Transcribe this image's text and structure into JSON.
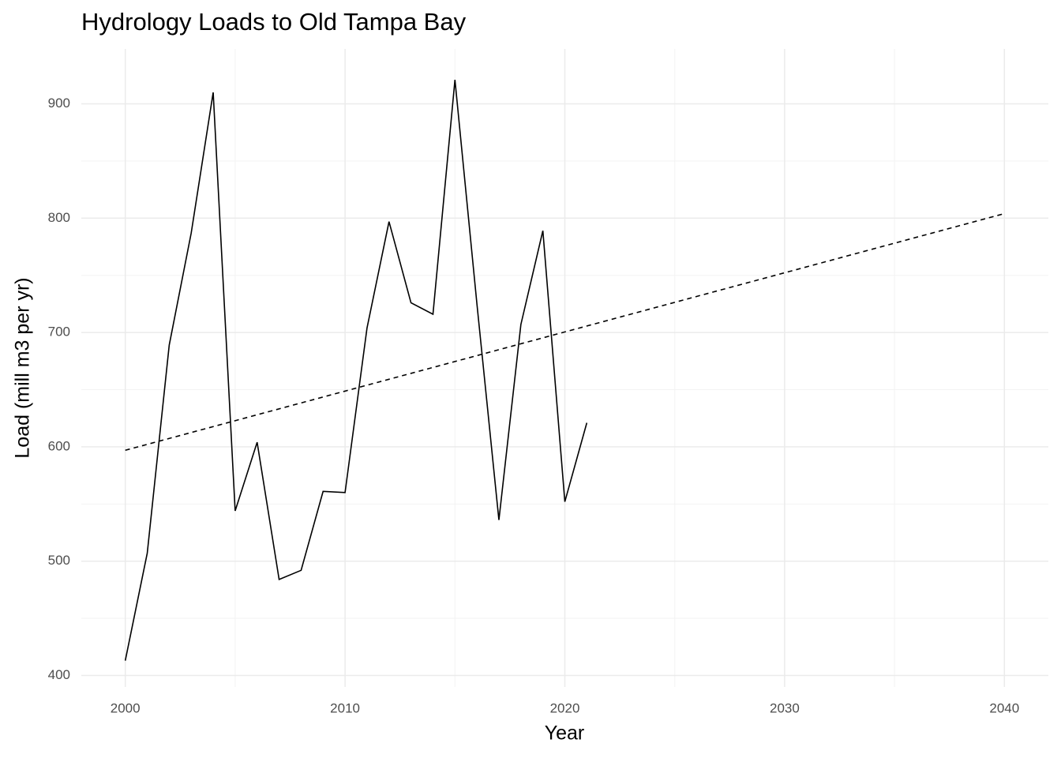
{
  "chart_data": {
    "type": "line",
    "title": "Hydrology Loads to Old Tampa Bay",
    "x_label": "Year",
    "y_label": "Load (mill m3 per yr)",
    "xlim": [
      1998,
      2042
    ],
    "ylim": [
      390,
      948
    ],
    "xticks": [
      2000,
      2010,
      2020,
      2030,
      2040
    ],
    "yticks": [
      400,
      500,
      600,
      700,
      800,
      900
    ],
    "x_minor_grid": [
      2005,
      2015,
      2025,
      2035
    ],
    "y_minor_grid": [
      450,
      550,
      650,
      750,
      850
    ],
    "grid": true,
    "series": [
      {
        "color": "#000000",
        "dashed": false,
        "x": [
          2000,
          2001,
          2002,
          2003,
          2004,
          2005,
          2006,
          2007,
          2008,
          2009,
          2010,
          2011,
          2012,
          2013,
          2014,
          2015,
          2016,
          2017,
          2018,
          2019,
          2020,
          2021
        ],
        "values": [
          413,
          507,
          689,
          787,
          910,
          544,
          604,
          484,
          492,
          561,
          560,
          704,
          797,
          726,
          716,
          921,
          725,
          536,
          707,
          789,
          552,
          621
        ]
      },
      {
        "color": "#000000",
        "dashed": true,
        "x": [
          2000,
          2040
        ],
        "values": [
          597,
          804
        ]
      }
    ]
  }
}
